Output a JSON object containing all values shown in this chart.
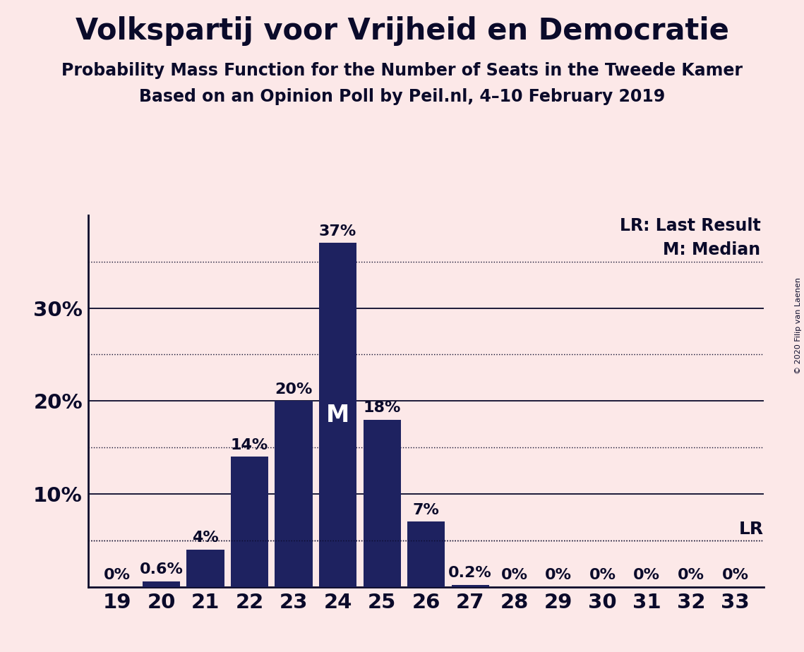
{
  "title": "Volkspartij voor Vrijheid en Democratie",
  "subtitle1": "Probability Mass Function for the Number of Seats in the Tweede Kamer",
  "subtitle2": "Based on an Opinion Poll by Peil.nl, 4–10 February 2019",
  "copyright": "© 2020 Filip van Laenen",
  "background_color": "#fce8e8",
  "bar_color": "#1e2260",
  "categories": [
    19,
    20,
    21,
    22,
    23,
    24,
    25,
    26,
    27,
    28,
    29,
    30,
    31,
    32,
    33
  ],
  "values": [
    0.0,
    0.6,
    4.0,
    14.0,
    20.0,
    37.0,
    18.0,
    7.0,
    0.2,
    0.0,
    0.0,
    0.0,
    0.0,
    0.0,
    0.0
  ],
  "labels": [
    "0%",
    "0.6%",
    "4%",
    "14%",
    "20%",
    "37%",
    "18%",
    "7%",
    "0.2%",
    "0%",
    "0%",
    "0%",
    "0%",
    "0%",
    "0%"
  ],
  "median_bar": 24,
  "lr_value": 5.0,
  "lr_label": "LR",
  "legend_lr": "LR: Last Result",
  "legend_m": "M: Median",
  "ylim": [
    0,
    40
  ],
  "axis_color": "#0a0a2a",
  "text_color": "#0a0a2a",
  "grid_color": "#0a0a2a",
  "title_fontsize": 30,
  "subtitle_fontsize": 17,
  "tick_fontsize": 21,
  "label_fontsize": 16,
  "legend_fontsize": 17,
  "median_fontsize": 24,
  "copyright_fontsize": 8
}
